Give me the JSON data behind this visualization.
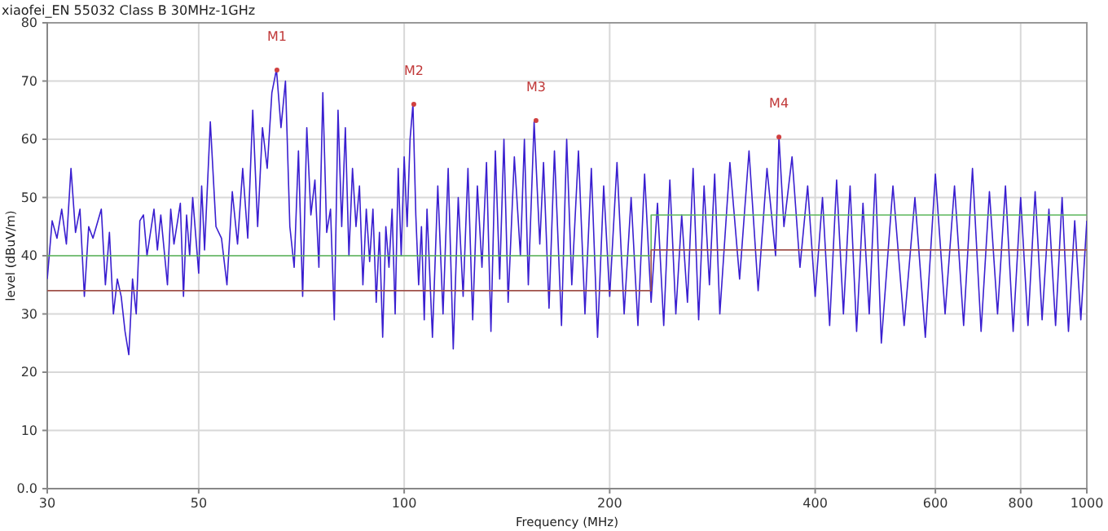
{
  "chart_data": {
    "type": "line",
    "title": "xiaofei_EN 55032 Class B 30MHz-1GHz",
    "xlabel": "Frequency (MHz)",
    "ylabel": "level (dBuV/m)",
    "log": "x",
    "grid": true,
    "xlim": [
      30,
      1000
    ],
    "ylim": [
      0,
      80
    ],
    "xticks": [
      30,
      50,
      100,
      200,
      400,
      600,
      800,
      1000
    ],
    "yticks": [
      {
        "value": 0,
        "label": "0.0"
      },
      10,
      20,
      30,
      40,
      50,
      60,
      70,
      80
    ],
    "series": [
      {
        "color": "#3a1fd0",
        "x": [
          30,
          30.5,
          31,
          31.5,
          32,
          32.5,
          33,
          33.5,
          34,
          34.5,
          35,
          36,
          36.5,
          37,
          37.5,
          38,
          38.5,
          39,
          39.5,
          40,
          40.5,
          41,
          41.5,
          42,
          43,
          43.5,
          44,
          45,
          45.5,
          46,
          47,
          47.5,
          48,
          48.5,
          49,
          50,
          50.5,
          51,
          52,
          53,
          54,
          55,
          56,
          57,
          58,
          59,
          60,
          61,
          62,
          63,
          64,
          65,
          66,
          67,
          68,
          69,
          70,
          71,
          72,
          73,
          74,
          75,
          76,
          77,
          78,
          79,
          80,
          81,
          82,
          83,
          84,
          85,
          86,
          87,
          88,
          89,
          90,
          91,
          92,
          93,
          94,
          95,
          96,
          97,
          98,
          99,
          100,
          101,
          102,
          103,
          104,
          105,
          106,
          107,
          108,
          110,
          112,
          114,
          116,
          118,
          120,
          122,
          124,
          126,
          128,
          130,
          132,
          134,
          136,
          138,
          140,
          142,
          145,
          148,
          150,
          152,
          155,
          158,
          160,
          163,
          166,
          170,
          173,
          176,
          180,
          184,
          188,
          192,
          196,
          200,
          205,
          210,
          215,
          220,
          225,
          230,
          235,
          240,
          245,
          250,
          255,
          260,
          265,
          270,
          275,
          280,
          285,
          290,
          300,
          310,
          320,
          330,
          340,
          350,
          354,
          360,
          370,
          380,
          390,
          400,
          410,
          420,
          430,
          440,
          450,
          460,
          470,
          480,
          490,
          500,
          520,
          540,
          560,
          580,
          600,
          620,
          640,
          660,
          680,
          700,
          720,
          740,
          760,
          780,
          800,
          820,
          840,
          860,
          880,
          900,
          920,
          940,
          960,
          980,
          1000
        ],
        "values": [
          36,
          46,
          43,
          48,
          42,
          55,
          44,
          48,
          33,
          45,
          43,
          48,
          35,
          44,
          30,
          36,
          33,
          27,
          23,
          36,
          30,
          46,
          47,
          40,
          48,
          41,
          47,
          35,
          48,
          42,
          49,
          33,
          47,
          40,
          50,
          37,
          52,
          41,
          63,
          45,
          43,
          35,
          51,
          42,
          55,
          43,
          65,
          45,
          62,
          55,
          68,
          72,
          62,
          70,
          45,
          38,
          58,
          33,
          62,
          47,
          53,
          38,
          68,
          44,
          48,
          29,
          65,
          45,
          62,
          40,
          55,
          45,
          52,
          35,
          48,
          39,
          48,
          32,
          44,
          26,
          45,
          38,
          48,
          30,
          55,
          40,
          57,
          45,
          60,
          66,
          47,
          35,
          45,
          29,
          48,
          26,
          52,
          30,
          55,
          24,
          50,
          33,
          55,
          29,
          52,
          38,
          56,
          27,
          58,
          36,
          60,
          32,
          57,
          40,
          60,
          35,
          63,
          42,
          56,
          31,
          58,
          28,
          60,
          35,
          58,
          30,
          55,
          26,
          52,
          33,
          56,
          30,
          50,
          28,
          54,
          32,
          49,
          28,
          53,
          30,
          47,
          32,
          55,
          29,
          52,
          35,
          54,
          30,
          56,
          36,
          58,
          34,
          55,
          40,
          60.4,
          45,
          57,
          38,
          52,
          33,
          50,
          28,
          53,
          30,
          52,
          27,
          49,
          30,
          54,
          25,
          52,
          28,
          50,
          26,
          54,
          30,
          52,
          28,
          55,
          27,
          51,
          30,
          52,
          27,
          50,
          28,
          51,
          29,
          48,
          28,
          50,
          27,
          46,
          29,
          46
        ]
      },
      {
        "color": "#5cb85c",
        "x": [
          30,
          230,
          230,
          1000
        ],
        "values": [
          40,
          40,
          47,
          47
        ]
      },
      {
        "color": "#a0524a",
        "x": [
          30,
          230,
          230,
          1000
        ],
        "values": [
          34,
          34,
          41,
          41
        ]
      }
    ],
    "annotations": [
      {
        "text": "M1",
        "x": 65.1,
        "y": 71.9
      },
      {
        "text": "M2",
        "x": 103.3,
        "y": 66.0
      },
      {
        "text": "M3",
        "x": 156,
        "y": 63.2
      },
      {
        "text": "M4",
        "x": 354,
        "y": 60.4
      }
    ]
  }
}
